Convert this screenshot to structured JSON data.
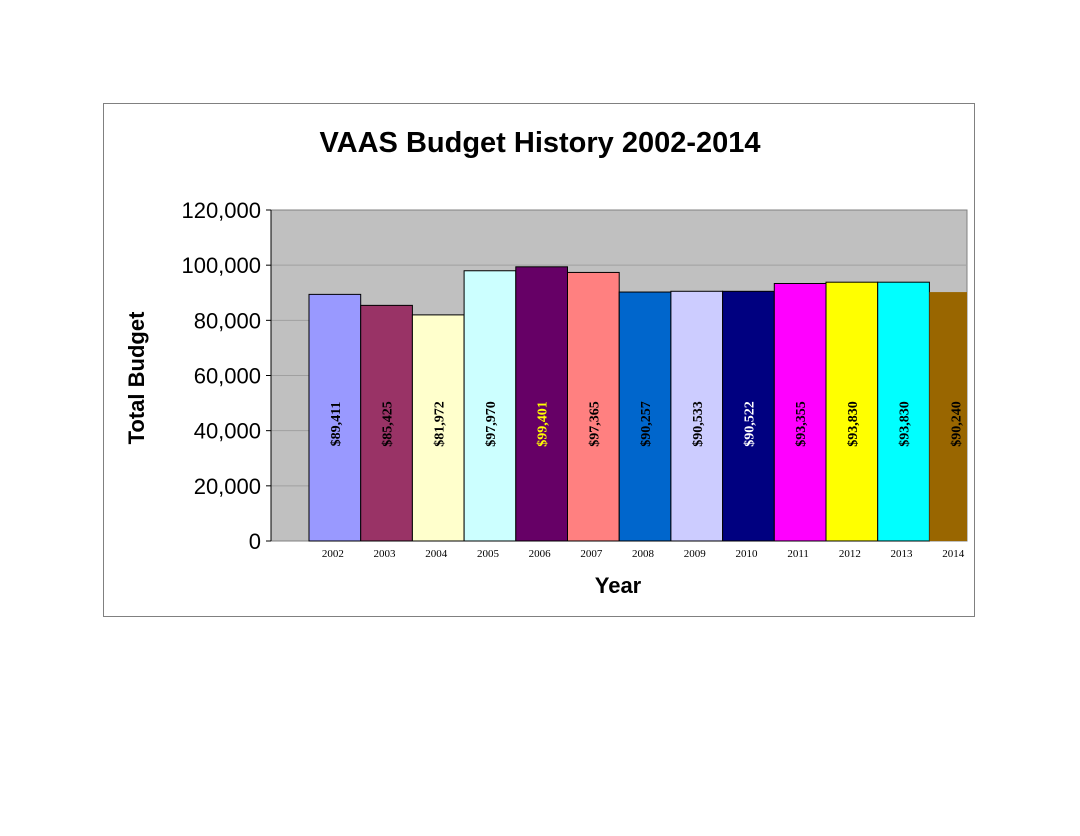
{
  "chart_data": {
    "type": "bar",
    "title": "VAAS Budget History 2002-2014",
    "xlabel": "Year",
    "ylabel": "Total Budget",
    "ylim": [
      0,
      120000
    ],
    "yticks": [
      "0",
      "20,000",
      "40,000",
      "60,000",
      "80,000",
      "100,000",
      "120,000"
    ],
    "ytick_values": [
      0,
      20000,
      40000,
      60000,
      80000,
      100000,
      120000
    ],
    "grid": true,
    "plot_background": "#c0c0c0",
    "categories": [
      "2002",
      "2003",
      "2004",
      "2005",
      "2006",
      "2007",
      "2008",
      "2009",
      "2010",
      "2011",
      "2012",
      "2013",
      "2014"
    ],
    "values": [
      89411,
      85425,
      81972,
      97970,
      99401,
      97365,
      90257,
      90533,
      90522,
      93355,
      93830,
      93830,
      90240
    ],
    "labels": [
      "$89,411",
      "$85,425",
      "$81,972",
      "$97,970",
      "$99,401",
      "$97,365",
      "$90,257",
      "$90,533",
      "$90,522",
      "$93,355",
      "$93,830",
      "$93,830",
      "$90,240"
    ],
    "colors": [
      "#9999ff",
      "#993366",
      "#ffffcc",
      "#ccffff",
      "#660066",
      "#ff8080",
      "#0066cc",
      "#ccccff",
      "#000080",
      "#ff00ff",
      "#ffff00",
      "#00ffff",
      "#996600"
    ],
    "label_colors": [
      "#000000",
      "#000000",
      "#000000",
      "#000000",
      "#ffff00",
      "#000000",
      "#000000",
      "#000000",
      "#ffffff",
      "#000000",
      "#000000",
      "#000000",
      "#000000"
    ]
  }
}
